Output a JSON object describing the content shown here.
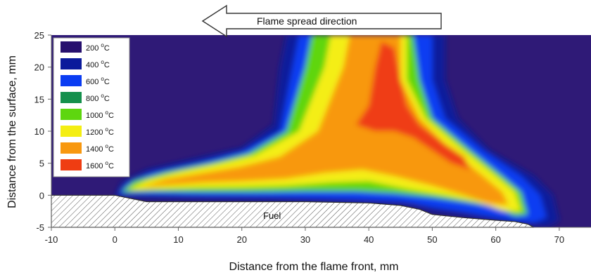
{
  "chart_data": {
    "type": "heatmap",
    "xlabel": "Distance from the flame front, mm",
    "ylabel": "Distance from the surface, mm",
    "xlim": [
      -10,
      75
    ],
    "ylim": [
      -5,
      25
    ],
    "x_ticks": [
      -10,
      0,
      10,
      20,
      30,
      40,
      50,
      60,
      70
    ],
    "y_ticks": [
      -5,
      0,
      5,
      10,
      15,
      20,
      25
    ],
    "annotation_arrow": "Flame spread direction",
    "annotation_fuel": "Fuel",
    "legend": {
      "placement": "top-left",
      "entries": [
        {
          "value": "200",
          "unit": "C",
          "color": "#27106e"
        },
        {
          "value": "400",
          "unit": "C",
          "color": "#0b1a9b"
        },
        {
          "value": "600",
          "unit": "C",
          "color": "#0a3cf2"
        },
        {
          "value": "800",
          "unit": "C",
          "color": "#14904c"
        },
        {
          "value": "1000",
          "unit": "C",
          "color": "#5ed60f"
        },
        {
          "value": "1200",
          "unit": "C",
          "color": "#f4ee12"
        },
        {
          "value": "1400",
          "unit": "C",
          "color": "#f8980f"
        },
        {
          "value": "1600",
          "unit": "C",
          "color": "#ef3d12"
        }
      ]
    },
    "background_color": "#2f1a77",
    "fuel_surface": {
      "x": [
        -10,
        0,
        5,
        10,
        20,
        30,
        40,
        45,
        48,
        50,
        55,
        60,
        63,
        65,
        66
      ],
      "y": [
        0,
        0,
        -1,
        -1,
        -1,
        -1,
        -1.2,
        -1.6,
        -2.2,
        -3,
        -3.5,
        -3.9,
        -4.1,
        -4.5,
        -5
      ]
    },
    "flame_regions": [
      {
        "level": 400,
        "points": [
          [
            0,
            -0.2
          ],
          [
            1,
            2
          ],
          [
            5,
            4
          ],
          [
            12,
            5.6
          ],
          [
            20,
            7.4
          ],
          [
            25,
            11
          ],
          [
            26,
            20
          ],
          [
            27,
            25
          ],
          [
            52,
            25
          ],
          [
            52,
            18
          ],
          [
            54,
            12
          ],
          [
            59,
            7
          ],
          [
            66,
            3
          ],
          [
            69,
            0
          ],
          [
            70,
            -4
          ],
          [
            68,
            -5
          ],
          [
            65,
            -4.5
          ],
          [
            62,
            -4.5
          ],
          [
            55,
            -3
          ],
          [
            50,
            -2.5
          ],
          [
            47,
            -1.5
          ],
          [
            40,
            -1
          ],
          [
            30,
            -0.8
          ],
          [
            20,
            -0.6
          ],
          [
            10,
            -0.5
          ],
          [
            5,
            -0.4
          ]
        ]
      },
      {
        "level": 600,
        "points": [
          [
            0.5,
            0.2
          ],
          [
            2,
            2
          ],
          [
            6,
            3.6
          ],
          [
            13,
            5
          ],
          [
            20,
            6.8
          ],
          [
            26,
            10
          ],
          [
            28,
            20
          ],
          [
            29,
            25
          ],
          [
            50,
            25
          ],
          [
            50,
            18
          ],
          [
            52,
            12
          ],
          [
            58,
            7
          ],
          [
            64,
            3
          ],
          [
            67,
            0
          ],
          [
            68,
            -3.5
          ],
          [
            66,
            -4.3
          ],
          [
            62,
            -3.8
          ],
          [
            56,
            -2.8
          ],
          [
            51,
            -2
          ],
          [
            45,
            -1
          ],
          [
            35,
            -0.6
          ],
          [
            25,
            -0.3
          ],
          [
            15,
            -0.2
          ],
          [
            7,
            0
          ],
          [
            3,
            0.1
          ]
        ]
      },
      {
        "level": 1000,
        "points": [
          [
            1,
            0.5
          ],
          [
            3,
            2.2
          ],
          [
            8,
            3.6
          ],
          [
            15,
            5
          ],
          [
            21,
            6.5
          ],
          [
            27,
            10
          ],
          [
            30,
            20
          ],
          [
            31,
            25
          ],
          [
            47,
            25
          ],
          [
            48,
            18
          ],
          [
            50,
            12
          ],
          [
            56,
            7
          ],
          [
            61,
            3
          ],
          [
            64,
            0.5
          ],
          [
            65,
            -3
          ],
          [
            63,
            -3.2
          ],
          [
            60,
            -1.8
          ],
          [
            55,
            -1
          ],
          [
            50,
            -0.3
          ],
          [
            44,
            0.3
          ],
          [
            38,
            0.6
          ],
          [
            30,
            0.6
          ],
          [
            22,
            0.5
          ],
          [
            14,
            0.5
          ],
          [
            6,
            0.6
          ]
        ]
      },
      {
        "level": 1200,
        "points": [
          [
            2,
            0.8
          ],
          [
            5,
            2.3
          ],
          [
            10,
            3.6
          ],
          [
            16,
            4.8
          ],
          [
            22,
            6.2
          ],
          [
            29,
            10
          ],
          [
            33,
            20
          ],
          [
            34,
            25
          ],
          [
            46,
            25
          ],
          [
            46,
            18
          ],
          [
            49,
            12
          ],
          [
            55,
            7
          ],
          [
            60,
            3
          ],
          [
            63,
            0.5
          ],
          [
            64,
            -2.5
          ],
          [
            61,
            -2.4
          ],
          [
            57,
            -1
          ],
          [
            52,
            0
          ],
          [
            46,
            1
          ],
          [
            40,
            2.2
          ],
          [
            34,
            2
          ],
          [
            27,
            1.5
          ],
          [
            20,
            1.3
          ],
          [
            13,
            1.2
          ],
          [
            7,
            1
          ]
        ]
      },
      {
        "level": 1400,
        "points": [
          [
            4,
            1.2
          ],
          [
            8,
            2.5
          ],
          [
            14,
            3.5
          ],
          [
            20,
            4.5
          ],
          [
            26,
            6
          ],
          [
            32,
            10
          ],
          [
            36,
            20
          ],
          [
            37,
            25
          ],
          [
            45,
            25
          ],
          [
            45,
            18
          ],
          [
            48,
            12
          ],
          [
            53,
            7
          ],
          [
            58,
            3
          ],
          [
            61,
            0.5
          ],
          [
            62,
            -1.5
          ],
          [
            59,
            -1.3
          ],
          [
            55,
            0
          ],
          [
            50,
            1.5
          ],
          [
            44,
            3
          ],
          [
            39,
            4
          ],
          [
            33,
            3.5
          ],
          [
            27,
            2.6
          ],
          [
            20,
            2.2
          ],
          [
            14,
            2
          ],
          [
            8,
            1.6
          ]
        ]
      },
      {
        "level": 1600,
        "points": [
          [
            38,
            11
          ],
          [
            40,
            14
          ],
          [
            41,
            20
          ],
          [
            42,
            24
          ],
          [
            44,
            23
          ],
          [
            45,
            18
          ],
          [
            46,
            14
          ],
          [
            48,
            11
          ],
          [
            52,
            8
          ],
          [
            55,
            6
          ],
          [
            56,
            4
          ],
          [
            53,
            5
          ],
          [
            50,
            7
          ],
          [
            47,
            9
          ],
          [
            44,
            10
          ],
          [
            41,
            10
          ]
        ]
      }
    ]
  }
}
